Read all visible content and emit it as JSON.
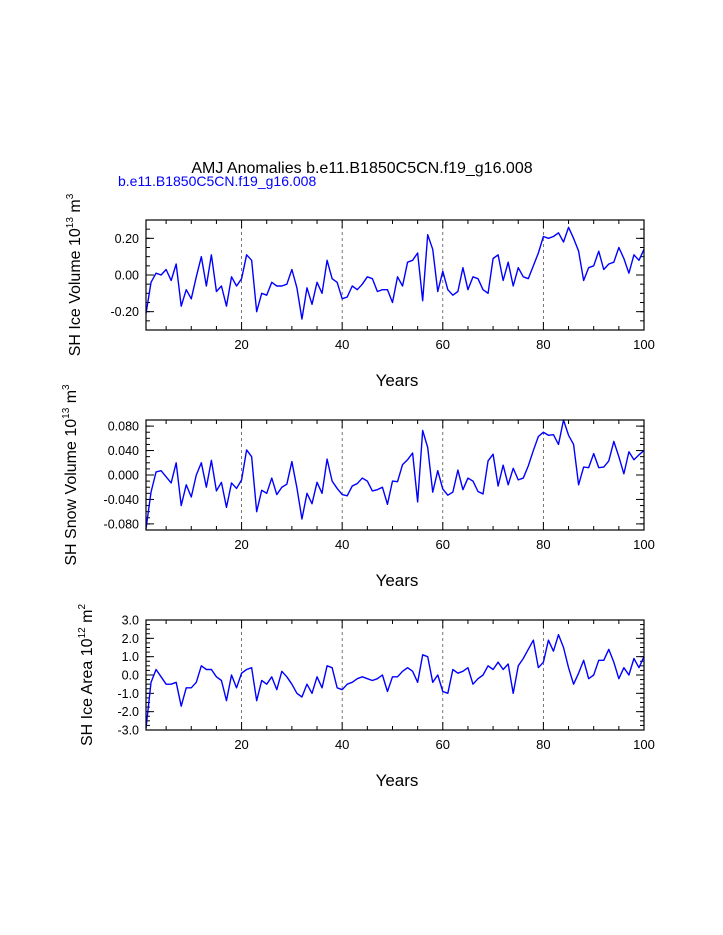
{
  "title": "AMJ Anomalies b.e11.B1850C5CN.f19_g16.008",
  "colors": {
    "series": "#0000ff",
    "axis": "#000000",
    "grid": "#555555"
  },
  "chart_data": [
    {
      "type": "line",
      "name": "ice-volume",
      "legend_label": "b.e11.B1850C5CN.f19_g16.008",
      "ylabel_main": "SH Ice Volume 10",
      "ylabel_exp": "13",
      "ylabel_unit": " m",
      "ylabel_unit_exp": "3",
      "xlabel": "Years",
      "xlim": [
        1,
        100
      ],
      "ylim": [
        -0.3,
        0.3
      ],
      "xticks": [
        20,
        40,
        60,
        80,
        100
      ],
      "xtick_labels": [
        "20",
        "40",
        "60",
        "80",
        "100"
      ],
      "yticks": [
        -0.2,
        0.0,
        0.2
      ],
      "ytick_labels": [
        "-0.20",
        "0.00",
        "0.20"
      ],
      "gridlines_x": [
        20,
        40,
        60,
        80
      ],
      "series": [
        {
          "name": "b.e11.B1850C5CN.f19_g16.008",
          "values": [
            -0.21,
            -0.04,
            0.01,
            0.0,
            0.03,
            -0.03,
            0.06,
            -0.17,
            -0.08,
            -0.13,
            -0.01,
            0.1,
            -0.06,
            0.11,
            -0.09,
            -0.06,
            -0.17,
            -0.01,
            -0.06,
            -0.02,
            0.11,
            0.08,
            -0.2,
            -0.1,
            -0.11,
            -0.04,
            -0.06,
            -0.06,
            -0.05,
            0.03,
            -0.07,
            -0.24,
            -0.07,
            -0.16,
            -0.04,
            -0.1,
            0.08,
            -0.02,
            -0.04,
            -0.13,
            -0.12,
            -0.06,
            -0.08,
            -0.05,
            -0.01,
            -0.02,
            -0.09,
            -0.08,
            -0.08,
            -0.15,
            -0.01,
            -0.06,
            0.07,
            0.08,
            0.12,
            -0.14,
            0.22,
            0.14,
            -0.09,
            0.02,
            -0.08,
            -0.11,
            -0.09,
            0.04,
            -0.08,
            -0.01,
            -0.02,
            -0.08,
            -0.1,
            0.09,
            0.11,
            -0.03,
            0.07,
            -0.06,
            0.04,
            -0.01,
            -0.02,
            0.05,
            0.12,
            0.21,
            0.2,
            0.21,
            0.23,
            0.18,
            0.26,
            0.2,
            0.13,
            -0.03,
            0.04,
            0.05,
            0.13,
            0.03,
            0.06,
            0.07,
            0.15,
            0.09,
            0.01,
            0.11,
            0.08,
            0.14
          ]
        }
      ]
    },
    {
      "type": "line",
      "name": "snow-volume",
      "ylabel_main": "SH Snow Volume 10",
      "ylabel_exp": "13",
      "ylabel_unit": " m",
      "ylabel_unit_exp": "3",
      "xlabel": "Years",
      "xlim": [
        1,
        100
      ],
      "ylim": [
        -0.09,
        0.09
      ],
      "xticks": [
        20,
        40,
        60,
        80,
        100
      ],
      "xtick_labels": [
        "20",
        "40",
        "60",
        "80",
        "100"
      ],
      "yticks": [
        -0.08,
        -0.04,
        0.0,
        0.04,
        0.08
      ],
      "ytick_labels": [
        "-0.080",
        "-0.040",
        "0.000",
        "0.040",
        "0.080"
      ],
      "gridlines_x": [
        20,
        40,
        60,
        80
      ],
      "series": [
        {
          "name": "b.e11.B1850C5CN.f19_g16.008",
          "values": [
            -0.088,
            -0.028,
            0.005,
            0.007,
            -0.003,
            -0.013,
            0.02,
            -0.05,
            -0.016,
            -0.036,
            0.0,
            0.02,
            -0.02,
            0.024,
            -0.026,
            -0.012,
            -0.053,
            -0.013,
            -0.022,
            -0.008,
            0.041,
            0.03,
            -0.06,
            -0.025,
            -0.03,
            -0.005,
            -0.032,
            -0.02,
            -0.015,
            0.022,
            -0.021,
            -0.072,
            -0.03,
            -0.047,
            -0.012,
            -0.03,
            0.026,
            -0.01,
            -0.022,
            -0.032,
            -0.034,
            -0.018,
            -0.014,
            -0.005,
            -0.01,
            -0.026,
            -0.024,
            -0.02,
            -0.048,
            -0.01,
            -0.011,
            0.017,
            0.025,
            0.036,
            -0.044,
            0.073,
            0.045,
            -0.028,
            0.007,
            -0.023,
            -0.033,
            -0.028,
            0.008,
            -0.024,
            -0.005,
            -0.01,
            -0.027,
            -0.031,
            0.023,
            0.034,
            -0.018,
            0.016,
            -0.016,
            0.011,
            -0.008,
            -0.005,
            0.015,
            0.04,
            0.063,
            0.07,
            0.065,
            0.066,
            0.05,
            0.09,
            0.065,
            0.05,
            -0.016,
            0.013,
            0.012,
            0.035,
            0.012,
            0.013,
            0.023,
            0.055,
            0.03,
            0.002,
            0.038,
            0.025,
            0.033,
            0.04
          ]
        }
      ]
    },
    {
      "type": "line",
      "name": "ice-area",
      "ylabel_main": "SH Ice Area 10",
      "ylabel_exp": "12",
      "ylabel_unit": " m",
      "ylabel_unit_exp": "2",
      "xlabel": "Years",
      "xlim": [
        1,
        100
      ],
      "ylim": [
        -3.0,
        3.0
      ],
      "xticks": [
        20,
        40,
        60,
        80,
        100
      ],
      "xtick_labels": [
        "20",
        "40",
        "60",
        "80",
        "100"
      ],
      "yticks": [
        -3.0,
        -2.0,
        -1.0,
        0.0,
        1.0,
        2.0,
        3.0
      ],
      "ytick_labels": [
        "-3.0",
        "-2.0",
        "-1.0",
        "0.0",
        "1.0",
        "2.0",
        "3.0"
      ],
      "gridlines_x": [
        20,
        40,
        60,
        80
      ],
      "series": [
        {
          "name": "b.e11.B1850C5CN.f19_g16.008",
          "values": [
            -2.9,
            -0.4,
            0.3,
            -0.1,
            -0.5,
            -0.5,
            -0.4,
            -1.7,
            -0.7,
            -0.7,
            -0.4,
            0.5,
            0.3,
            0.3,
            -0.1,
            -0.3,
            -1.4,
            0.0,
            -0.7,
            0.1,
            0.3,
            0.4,
            -1.4,
            -0.3,
            -0.5,
            -0.1,
            -0.8,
            0.2,
            -0.1,
            -0.5,
            -1.0,
            -1.2,
            -0.5,
            -1.0,
            -0.1,
            -0.7,
            0.5,
            0.4,
            -0.7,
            -0.8,
            -0.5,
            -0.4,
            -0.2,
            -0.1,
            -0.2,
            -0.3,
            -0.2,
            0.0,
            -0.9,
            -0.1,
            -0.1,
            0.2,
            0.4,
            0.2,
            -0.4,
            1.1,
            1.0,
            -0.4,
            0.0,
            -0.9,
            -1.0,
            0.3,
            0.1,
            0.2,
            0.4,
            -0.5,
            -0.2,
            0.0,
            0.5,
            0.3,
            0.7,
            0.3,
            0.6,
            -1.0,
            0.5,
            0.9,
            1.4,
            1.9,
            0.4,
            0.7,
            1.9,
            1.3,
            2.2,
            1.5,
            0.4,
            -0.5,
            0.1,
            0.8,
            -0.2,
            0.0,
            0.8,
            0.8,
            1.4,
            0.7,
            -0.2,
            0.4,
            0.0,
            0.9,
            0.4,
            1.0
          ]
        }
      ]
    }
  ]
}
